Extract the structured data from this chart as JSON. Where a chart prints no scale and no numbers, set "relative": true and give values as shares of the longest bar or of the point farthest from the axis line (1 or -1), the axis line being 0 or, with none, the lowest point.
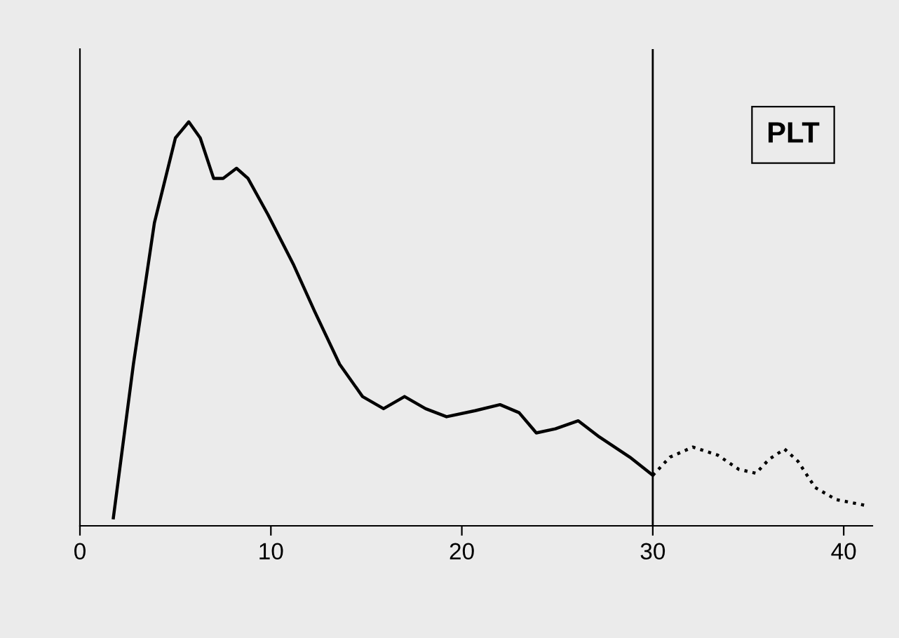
{
  "chart_data": {
    "type": "line",
    "relative": true,
    "annotations": [
      "PLT"
    ],
    "xlim": [
      0,
      41.5
    ],
    "xticks": [
      0,
      10,
      20,
      30,
      40
    ],
    "grid": false,
    "legend": false,
    "marker": "none",
    "tick_labels": "x",
    "ref_lines": [
      {
        "axis": "x",
        "value": 30,
        "color": "#000000",
        "line_style": "solid"
      }
    ],
    "series": [
      {
        "color": "#000000",
        "line_style": "solid",
        "x": [
          1.75,
          2.8,
          3.9,
          5.0,
          5.7,
          6.3,
          7.0,
          7.5,
          8.2,
          8.8,
          9.85,
          11.2,
          12.3,
          13.6,
          14.8,
          15.9,
          17.0,
          18.1,
          19.2,
          20.7,
          22.0,
          23.0,
          23.9,
          24.9,
          26.1,
          27.2,
          28.8,
          30.0
        ],
        "values": [
          0.02,
          0.4,
          0.75,
          0.96,
          1.0,
          0.96,
          0.86,
          0.86,
          0.885,
          0.86,
          0.77,
          0.645,
          0.53,
          0.4,
          0.32,
          0.29,
          0.32,
          0.29,
          0.27,
          0.285,
          0.3,
          0.28,
          0.23,
          0.24,
          0.26,
          0.22,
          0.17,
          0.125
        ]
      },
      {
        "color": "#000000",
        "line_style": "dotted",
        "x": [
          30.0,
          30.9,
          32.1,
          33.4,
          34.5,
          35.4,
          36.1,
          36.9,
          37.6,
          38.5,
          39.6,
          41.2
        ],
        "values": [
          0.125,
          0.17,
          0.195,
          0.175,
          0.14,
          0.13,
          0.165,
          0.19,
          0.16,
          0.095,
          0.065,
          0.05
        ]
      }
    ]
  }
}
